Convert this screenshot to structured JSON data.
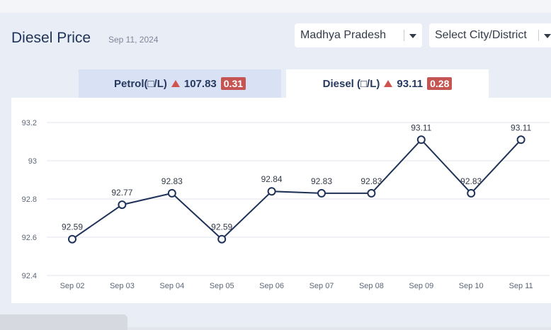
{
  "header": {
    "title": "Diesel Price",
    "date": "Sep 11, 2024",
    "state_select": "Madhya Pradesh",
    "city_select": "Select City/District"
  },
  "tabs": [
    {
      "label": "Petrol(□/L)",
      "price": "107.83",
      "change": "0.31",
      "active": false
    },
    {
      "label": "Diesel (□/L)",
      "price": "93.11",
      "change": "0.28",
      "active": true
    }
  ],
  "colors": {
    "line": "#1f3258",
    "badge": "#c55552",
    "arrow": "#d0534f"
  },
  "chart_data": {
    "type": "line",
    "categories": [
      "Sep 02",
      "Sep 03",
      "Sep 04",
      "Sep 05",
      "Sep 06",
      "Sep 07",
      "Sep 08",
      "Sep 09",
      "Sep 10",
      "Sep 11"
    ],
    "series": [
      {
        "values": [
          92.59,
          92.77,
          92.83,
          92.59,
          92.84,
          92.83,
          92.83,
          93.11,
          92.83,
          93.11
        ]
      }
    ],
    "data_labels": [
      "92.59",
      "92.77",
      "92.83",
      "92.59",
      "92.84",
      "92.83",
      "92.83",
      "93.11",
      "92.83",
      "93.11"
    ],
    "y_ticks": [
      "92.4",
      "92.6",
      "92.8",
      "93",
      "93.2"
    ],
    "ylim": [
      92.4,
      93.2
    ],
    "grid": true
  }
}
